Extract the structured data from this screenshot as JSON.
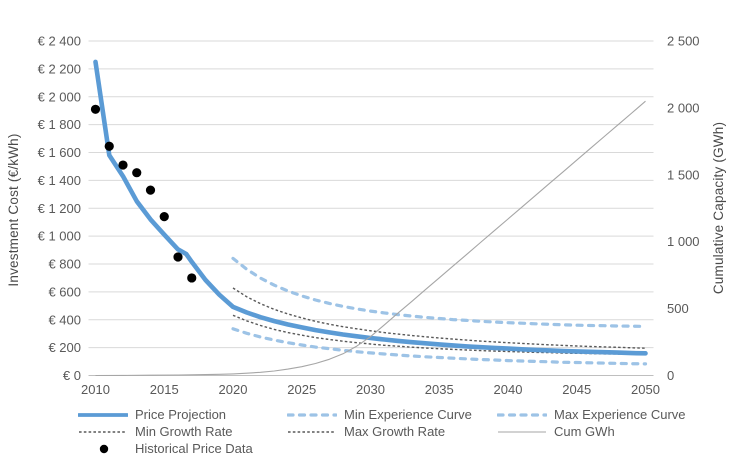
{
  "chart_data": {
    "type": "line",
    "title": "",
    "legend_position": "bottom",
    "grid": "horizontal",
    "colors": {
      "accent_blue": "#5B9BD5",
      "light_blue": "#9DC3E6",
      "dark_dotted": "#595959",
      "cum_gray": "#A6A6A6",
      "gridline": "#D9D9D9",
      "axis_line": "#BFBFBF",
      "text": "#595959",
      "historical": "#000000"
    },
    "x_axis": {
      "min": 2010,
      "max": 2050,
      "ticks": [
        2010,
        2015,
        2020,
        2025,
        2030,
        2035,
        2040,
        2045,
        2050
      ]
    },
    "left_axis": {
      "label": "Investment Cost (€/kWh)",
      "min": 0,
      "max": 2400,
      "step": 200,
      "tick_values": [
        0,
        200,
        400,
        600,
        800,
        1000,
        1200,
        1400,
        1600,
        1800,
        2000,
        2200,
        2400
      ],
      "tick_labels": [
        "€ 0",
        "€ 200",
        "€ 400",
        "€ 600",
        "€ 800",
        "€ 1 000",
        "€ 1 200",
        "€ 1 400",
        "€ 1 600",
        "€ 1 800",
        "€ 2 000",
        "€ 2 200",
        "€ 2 400"
      ]
    },
    "right_axis": {
      "label": "Cumulative Capacity (GWh)",
      "min": 0,
      "max": 2500,
      "step": 500,
      "tick_values": [
        0,
        500,
        1000,
        1500,
        2000,
        2500
      ],
      "tick_labels": [
        "0",
        "500",
        "1 000",
        "1 500",
        "2 000",
        "2 500"
      ]
    },
    "series": [
      {
        "name": "Price Projection",
        "style": "solid",
        "color": "#5B9BD5",
        "axis": "left",
        "points": [
          [
            2010,
            2250
          ],
          [
            2011,
            1580
          ],
          [
            2012,
            1430
          ],
          [
            2013,
            1250
          ],
          [
            2014,
            1120
          ],
          [
            2015,
            1010
          ],
          [
            2016,
            905
          ],
          [
            2016.6,
            872
          ],
          [
            2017,
            815
          ],
          [
            2018,
            685
          ],
          [
            2019,
            580
          ],
          [
            2020,
            492
          ],
          [
            2021,
            452
          ],
          [
            2022,
            418
          ],
          [
            2023,
            390
          ],
          [
            2024,
            366
          ],
          [
            2025,
            345
          ],
          [
            2026,
            326
          ],
          [
            2027,
            309
          ],
          [
            2028,
            294
          ],
          [
            2029,
            281
          ],
          [
            2030,
            269
          ],
          [
            2031,
            258
          ],
          [
            2032,
            248
          ],
          [
            2033,
            239
          ],
          [
            2034,
            231
          ],
          [
            2035,
            223
          ],
          [
            2036,
            216
          ],
          [
            2037,
            209
          ],
          [
            2038,
            203
          ],
          [
            2039,
            198
          ],
          [
            2040,
            193
          ],
          [
            2041,
            188
          ],
          [
            2042,
            184
          ],
          [
            2043,
            180
          ],
          [
            2044,
            176
          ],
          [
            2045,
            173
          ],
          [
            2046,
            170
          ],
          [
            2047,
            167
          ],
          [
            2048,
            164
          ],
          [
            2049,
            161
          ],
          [
            2050,
            159
          ]
        ]
      },
      {
        "name": "Min Experience Curve",
        "style": "dashed",
        "color": "#9DC3E6",
        "axis": "left",
        "points": [
          [
            2020,
            335
          ],
          [
            2021,
            303
          ],
          [
            2022,
            276
          ],
          [
            2023,
            254
          ],
          [
            2024,
            235
          ],
          [
            2025,
            219
          ],
          [
            2026,
            204
          ],
          [
            2027,
            192
          ],
          [
            2028,
            181
          ],
          [
            2029,
            171
          ],
          [
            2030,
            162
          ],
          [
            2031,
            154
          ],
          [
            2032,
            147
          ],
          [
            2033,
            140
          ],
          [
            2034,
            134
          ],
          [
            2035,
            129
          ],
          [
            2036,
            124
          ],
          [
            2037,
            119
          ],
          [
            2038,
            115
          ],
          [
            2039,
            111
          ],
          [
            2040,
            107
          ],
          [
            2041,
            104
          ],
          [
            2042,
            101
          ],
          [
            2043,
            98
          ],
          [
            2044,
            95
          ],
          [
            2045,
            93
          ],
          [
            2046,
            91
          ],
          [
            2047,
            89
          ],
          [
            2048,
            87
          ],
          [
            2049,
            85
          ],
          [
            2050,
            83
          ]
        ]
      },
      {
        "name": "Max Experience Curve",
        "style": "dashed",
        "color": "#9DC3E6",
        "axis": "left",
        "points": [
          [
            2020,
            840
          ],
          [
            2021,
            762
          ],
          [
            2022,
            699
          ],
          [
            2023,
            648
          ],
          [
            2024,
            606
          ],
          [
            2025,
            571
          ],
          [
            2026,
            542
          ],
          [
            2027,
            517
          ],
          [
            2028,
            496
          ],
          [
            2029,
            478
          ],
          [
            2030,
            462
          ],
          [
            2031,
            449
          ],
          [
            2032,
            437
          ],
          [
            2033,
            426
          ],
          [
            2034,
            417
          ],
          [
            2035,
            409
          ],
          [
            2036,
            401
          ],
          [
            2037,
            395
          ],
          [
            2038,
            389
          ],
          [
            2039,
            384
          ],
          [
            2040,
            379
          ],
          [
            2041,
            375
          ],
          [
            2042,
            371
          ],
          [
            2043,
            367
          ],
          [
            2044,
            364
          ],
          [
            2045,
            361
          ],
          [
            2046,
            359
          ],
          [
            2047,
            357
          ],
          [
            2048,
            355
          ],
          [
            2049,
            354
          ],
          [
            2050,
            352
          ]
        ]
      },
      {
        "name": "Min Growth Rate",
        "style": "dotted",
        "color": "#595959",
        "axis": "left",
        "points": [
          [
            2020,
            628
          ],
          [
            2021,
            565
          ],
          [
            2022,
            515
          ],
          [
            2023,
            474
          ],
          [
            2024,
            441
          ],
          [
            2025,
            413
          ],
          [
            2026,
            389
          ],
          [
            2027,
            368
          ],
          [
            2028,
            350
          ],
          [
            2029,
            335
          ],
          [
            2030,
            321
          ],
          [
            2031,
            308
          ],
          [
            2032,
            297
          ],
          [
            2033,
            287
          ],
          [
            2034,
            278
          ],
          [
            2035,
            269
          ],
          [
            2036,
            261
          ],
          [
            2037,
            254
          ],
          [
            2038,
            247
          ],
          [
            2039,
            241
          ],
          [
            2040,
            235
          ],
          [
            2041,
            230
          ],
          [
            2042,
            225
          ],
          [
            2043,
            220
          ],
          [
            2044,
            216
          ],
          [
            2045,
            212
          ],
          [
            2046,
            208
          ],
          [
            2047,
            205
          ],
          [
            2048,
            202
          ],
          [
            2049,
            199
          ],
          [
            2050,
            196
          ]
        ]
      },
      {
        "name": "Max Growth Rate",
        "style": "dotted",
        "color": "#595959",
        "axis": "left",
        "points": [
          [
            2020,
            432
          ],
          [
            2021,
            392
          ],
          [
            2022,
            359
          ],
          [
            2023,
            331
          ],
          [
            2024,
            308
          ],
          [
            2025,
            289
          ],
          [
            2026,
            272
          ],
          [
            2027,
            258
          ],
          [
            2028,
            246
          ],
          [
            2029,
            235
          ],
          [
            2030,
            226
          ],
          [
            2031,
            217
          ],
          [
            2032,
            210
          ],
          [
            2033,
            203
          ],
          [
            2034,
            197
          ],
          [
            2035,
            192
          ],
          [
            2036,
            187
          ],
          [
            2037,
            183
          ],
          [
            2038,
            179
          ],
          [
            2039,
            175
          ],
          [
            2040,
            172
          ],
          [
            2041,
            169
          ],
          [
            2042,
            166
          ],
          [
            2043,
            164
          ],
          [
            2044,
            161
          ],
          [
            2045,
            159
          ],
          [
            2046,
            157
          ],
          [
            2047,
            155
          ],
          [
            2048,
            154
          ],
          [
            2049,
            153
          ],
          [
            2050,
            152
          ]
        ]
      },
      {
        "name": "Cum GWh",
        "style": "thin",
        "color": "#A6A6A6",
        "axis": "right",
        "points": [
          [
            2010,
            0
          ],
          [
            2012,
            1
          ],
          [
            2014,
            2
          ],
          [
            2016,
            4
          ],
          [
            2018,
            7
          ],
          [
            2019,
            9
          ],
          [
            2020,
            12
          ],
          [
            2021,
            17
          ],
          [
            2022,
            24
          ],
          [
            2023,
            34
          ],
          [
            2024,
            48
          ],
          [
            2025,
            66
          ],
          [
            2026,
            90
          ],
          [
            2027,
            121
          ],
          [
            2028,
            162
          ],
          [
            2029,
            220
          ],
          [
            2030,
            290
          ],
          [
            2031,
            378
          ],
          [
            2032,
            466
          ],
          [
            2033,
            554
          ],
          [
            2034,
            642
          ],
          [
            2035,
            730
          ],
          [
            2036,
            818
          ],
          [
            2037,
            906
          ],
          [
            2038,
            994
          ],
          [
            2039,
            1082
          ],
          [
            2040,
            1170
          ],
          [
            2041,
            1258
          ],
          [
            2042,
            1346
          ],
          [
            2043,
            1434
          ],
          [
            2044,
            1522
          ],
          [
            2045,
            1610
          ],
          [
            2046,
            1698
          ],
          [
            2047,
            1786
          ],
          [
            2048,
            1874
          ],
          [
            2049,
            1962
          ],
          [
            2050,
            2050
          ]
        ]
      },
      {
        "name": "Historical Price Data",
        "style": "scatter",
        "marker": "circle",
        "color": "#000000",
        "axis": "left",
        "points": [
          [
            2010,
            1910
          ],
          [
            2011,
            1645
          ],
          [
            2012,
            1510
          ],
          [
            2013,
            1455
          ],
          [
            2014,
            1330
          ],
          [
            2015,
            1140
          ],
          [
            2016,
            850
          ],
          [
            2017,
            700
          ]
        ]
      }
    ]
  }
}
